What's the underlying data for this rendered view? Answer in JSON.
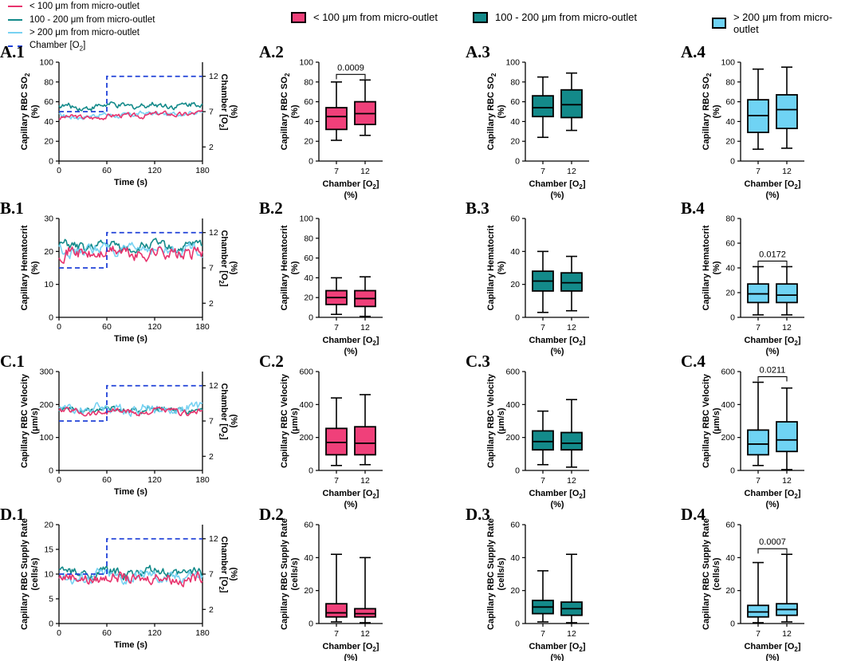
{
  "legend": {
    "lines": [
      {
        "label": "< 100 μm from micro-outlet",
        "color": "#e8336d",
        "dash": false
      },
      {
        "label": "100 - 200 μm from micro-outlet",
        "color": "#138a8a",
        "dash": false
      },
      {
        "label": "> 200 μm from micro-outlet",
        "color": "#77d2f2",
        "dash": false
      },
      {
        "label": "Chamber [O2]",
        "label_parts": {
          "pre": "Chamber [O",
          "sub": "2",
          "post": "]"
        },
        "color": "#2042d8",
        "dash": true
      }
    ],
    "boxes": [
      {
        "label": "< 100 μm from micro-outlet",
        "fill": "#f0407a"
      },
      {
        "label": "100 - 200 μm from micro-outlet",
        "fill": "#138a8a"
      },
      {
        "label": "> 200 μm from micro-outlet",
        "fill": "#6fd3f4"
      }
    ]
  },
  "colors": {
    "near": "#e8336d",
    "mid": "#138a8a",
    "far": "#77d2f2",
    "o2": "#2042d8",
    "box_near": "#f0407a",
    "box_mid": "#138a8a",
    "box_far": "#6fd3f4"
  },
  "chart_data": [
    {
      "id": "A.1",
      "type": "line",
      "ylabel": "Capillary RBC SO2",
      "ylabel_sub": "2",
      "ylabel2": "(%)",
      "ylim": [
        0,
        100
      ],
      "yticks": [
        0,
        20,
        40,
        60,
        80,
        100
      ],
      "xlabel": "Time (s)",
      "xlim": [
        0,
        180
      ],
      "xticks": [
        0,
        60,
        120,
        180
      ],
      "y2label": "Chamber [O2]",
      "y2ticks": [
        2,
        7,
        12
      ],
      "o2_step": {
        "before": 7,
        "after": 12,
        "at": 60
      },
      "series": [
        {
          "name": "< 100 μm from micro-outlet",
          "mean": 46,
          "drift": 5,
          "noise": 2
        },
        {
          "name": "100 - 200 μm from micro-outlet",
          "mean": 56,
          "drift": 3,
          "noise": 2.5
        },
        {
          "name": "> 200 μm from micro-outlet",
          "mean": 47,
          "drift": 4,
          "noise": 2
        }
      ]
    },
    {
      "id": "A.2",
      "type": "box",
      "ylabel": "Capillary RBC SO2",
      "ylabel2": "(%)",
      "ylim": [
        0,
        100
      ],
      "yticks": [
        0,
        20,
        40,
        60,
        80,
        100
      ],
      "categories": [
        "7",
        "12"
      ],
      "xlabel": "Chamber [O2]",
      "xlabel2": "(%)",
      "group": "near",
      "boxes": [
        {
          "min": 21,
          "q1": 32,
          "median": 45,
          "q3": 54,
          "max": 80
        },
        {
          "min": 26,
          "q1": 37,
          "median": 48,
          "q3": 60,
          "max": 82
        }
      ],
      "pvalue": "0.0009"
    },
    {
      "id": "A.3",
      "type": "box",
      "ylabel": "Capillary RBC SO2",
      "ylabel2": "(%)",
      "ylim": [
        0,
        100
      ],
      "yticks": [
        0,
        20,
        40,
        60,
        80,
        100
      ],
      "categories": [
        "7",
        "12"
      ],
      "xlabel": "Chamber [O2]",
      "xlabel2": "(%)",
      "group": "mid",
      "boxes": [
        {
          "min": 24,
          "q1": 45,
          "median": 54,
          "q3": 66,
          "max": 85
        },
        {
          "min": 31,
          "q1": 44,
          "median": 57,
          "q3": 72,
          "max": 89
        }
      ],
      "pvalue": null
    },
    {
      "id": "A.4",
      "type": "box",
      "ylabel": "Capillary RBC SO2",
      "ylabel2": "(%)",
      "ylim": [
        0,
        100
      ],
      "yticks": [
        0,
        20,
        40,
        60,
        80,
        100
      ],
      "categories": [
        "7",
        "12"
      ],
      "xlabel": "Chamber [O2]",
      "xlabel2": "(%)",
      "group": "far",
      "boxes": [
        {
          "min": 12,
          "q1": 29,
          "median": 46,
          "q3": 62,
          "max": 93
        },
        {
          "min": 13,
          "q1": 33,
          "median": 52,
          "q3": 67,
          "max": 95
        }
      ],
      "pvalue": null
    },
    {
      "id": "B.1",
      "type": "line",
      "ylabel": "Capillary Hematocrit",
      "ylabel2": "(%)",
      "ylim": [
        0,
        30
      ],
      "yticks": [
        0,
        10,
        20,
        30
      ],
      "xlabel": "Time (s)",
      "xlim": [
        0,
        180
      ],
      "xticks": [
        0,
        60,
        120,
        180
      ],
      "y2label": "Chamber [O2]",
      "y2ticks": [
        2,
        7,
        12
      ],
      "o2_step": {
        "before": 7,
        "after": 12,
        "at": 60
      },
      "series": [
        {
          "name": "< 100 μm from micro-outlet",
          "mean": 19.5,
          "drift": 0,
          "noise": 1.6
        },
        {
          "name": "100 - 200 μm from micro-outlet",
          "mean": 21.5,
          "drift": 0,
          "noise": 1.2
        },
        {
          "name": "> 200 μm from micro-outlet",
          "mean": 20.5,
          "drift": 0,
          "noise": 1.4
        }
      ]
    },
    {
      "id": "B.2",
      "type": "box",
      "ylabel": "Capillary Hematocrit",
      "ylabel2": "(%)",
      "ylim": [
        0,
        100
      ],
      "yticks": [
        0,
        20,
        40,
        60,
        80,
        100
      ],
      "categories": [
        "7",
        "12"
      ],
      "xlabel": "Chamber [O2]",
      "xlabel2": "(%)",
      "group": "near",
      "boxes": [
        {
          "min": 3,
          "q1": 13,
          "median": 20,
          "q3": 27,
          "max": 40
        },
        {
          "min": 1,
          "q1": 11,
          "median": 19,
          "q3": 27,
          "max": 41
        }
      ],
      "pvalue": null
    },
    {
      "id": "B.3",
      "type": "box",
      "ylabel": "Capillary Hematocrit",
      "ylabel2": "(%)",
      "ylim": [
        0,
        60
      ],
      "yticks": [
        0,
        20,
        40,
        60
      ],
      "categories": [
        "7",
        "12"
      ],
      "xlabel": "Chamber [O2]",
      "xlabel2": "(%)",
      "group": "mid",
      "boxes": [
        {
          "min": 3,
          "q1": 16,
          "median": 22,
          "q3": 28,
          "max": 40
        },
        {
          "min": 4,
          "q1": 16,
          "median": 21,
          "q3": 27,
          "max": 37
        }
      ],
      "pvalue": null
    },
    {
      "id": "B.4",
      "type": "box",
      "ylabel": "Capillary Hematocrit",
      "ylabel2": "(%)",
      "ylim": [
        0,
        80
      ],
      "yticks": [
        0,
        20,
        40,
        60,
        80
      ],
      "categories": [
        "7",
        "12"
      ],
      "xlabel": "Chamber [O2]",
      "xlabel2": "(%)",
      "group": "far",
      "boxes": [
        {
          "min": 2,
          "q1": 12,
          "median": 19,
          "q3": 27,
          "max": 41
        },
        {
          "min": 2,
          "q1": 12,
          "median": 18,
          "q3": 27,
          "max": 41
        }
      ],
      "pvalue": "0.0172"
    },
    {
      "id": "C.1",
      "type": "line",
      "ylabel": "Capillary RBC Velocity",
      "ylabel2": "(μm/s)",
      "ylim": [
        0,
        300
      ],
      "yticks": [
        0,
        100,
        200,
        300
      ],
      "xlabel": "Time (s)",
      "xlim": [
        0,
        180
      ],
      "xticks": [
        0,
        60,
        120,
        180
      ],
      "y2label": "Chamber [O2]",
      "y2ticks": [
        2,
        7,
        12
      ],
      "o2_step": {
        "before": 7,
        "after": 12,
        "at": 60
      },
      "series": [
        {
          "name": "< 100 μm from micro-outlet",
          "mean": 178,
          "drift": 0,
          "noise": 8
        },
        {
          "name": "100 - 200 μm from micro-outlet",
          "mean": 183,
          "drift": 0,
          "noise": 8
        },
        {
          "name": "> 200 μm from micro-outlet",
          "mean": 188,
          "drift": 0,
          "noise": 12
        }
      ]
    },
    {
      "id": "C.2",
      "type": "box",
      "ylabel": "Capillary RBC Velocity",
      "ylabel2": "(μm/s)",
      "ylim": [
        0,
        600
      ],
      "yticks": [
        0,
        200,
        400,
        600
      ],
      "categories": [
        "7",
        "12"
      ],
      "xlabel": "Chamber [O2]",
      "xlabel2": "(%)",
      "group": "near",
      "boxes": [
        {
          "min": 30,
          "q1": 95,
          "median": 170,
          "q3": 255,
          "max": 440
        },
        {
          "min": 35,
          "q1": 95,
          "median": 165,
          "q3": 265,
          "max": 460
        }
      ],
      "pvalue": null
    },
    {
      "id": "C.3",
      "type": "box",
      "ylabel": "Capillary RBC Velocity",
      "ylabel2": "(μm/s)",
      "ylim": [
        0,
        600
      ],
      "yticks": [
        0,
        200,
        400,
        600
      ],
      "categories": [
        "7",
        "12"
      ],
      "xlabel": "Chamber [O2]",
      "xlabel2": "(%)",
      "group": "mid",
      "boxes": [
        {
          "min": 35,
          "q1": 125,
          "median": 175,
          "q3": 240,
          "max": 360
        },
        {
          "min": 20,
          "q1": 125,
          "median": 165,
          "q3": 230,
          "max": 430
        }
      ],
      "pvalue": null
    },
    {
      "id": "C.4",
      "type": "box",
      "ylabel": "Capillary RBC Velocity",
      "ylabel2": "(μm/s)",
      "ylim": [
        0,
        600
      ],
      "yticks": [
        0,
        200,
        400,
        600
      ],
      "categories": [
        "7",
        "12"
      ],
      "xlabel": "Chamber [O2]",
      "xlabel2": "(%)",
      "group": "far",
      "boxes": [
        {
          "min": 30,
          "q1": 95,
          "median": 160,
          "q3": 245,
          "max": 535
        },
        {
          "min": 5,
          "q1": 115,
          "median": 185,
          "q3": 295,
          "max": 500
        }
      ],
      "pvalue": "0.0211"
    },
    {
      "id": "D.1",
      "type": "line",
      "ylabel": "Capillary RBC Supply Rate",
      "ylabel2": "(cells/s)",
      "ylim": [
        0,
        20
      ],
      "yticks": [
        0,
        5,
        10,
        15,
        20
      ],
      "xlabel": "Time (s)",
      "xlim": [
        0,
        180
      ],
      "xticks": [
        0,
        60,
        120,
        180
      ],
      "y2label": "Chamber [O2]",
      "y2ticks": [
        2,
        7,
        12
      ],
      "o2_step": {
        "before": 7,
        "after": 12,
        "at": 60
      },
      "series": [
        {
          "name": "< 100 μm from micro-outlet",
          "mean": 9.2,
          "drift": 0,
          "noise": 0.9
        },
        {
          "name": "100 - 200 μm from micro-outlet",
          "mean": 10.2,
          "drift": 0,
          "noise": 0.8
        },
        {
          "name": "> 200 μm from micro-outlet",
          "mean": 9.6,
          "drift": 0,
          "noise": 1.0
        }
      ]
    },
    {
      "id": "D.2",
      "type": "box",
      "ylabel": "Capillary RBC Supply Rate",
      "ylabel2": "(cells/s)",
      "ylim": [
        0,
        60
      ],
      "yticks": [
        0,
        20,
        40,
        60
      ],
      "categories": [
        "7",
        "12"
      ],
      "xlabel": "Chamber [O2]",
      "xlabel2": "(%)",
      "group": "near",
      "boxes": [
        {
          "min": 1,
          "q1": 4,
          "median": 6.5,
          "q3": 12,
          "max": 42
        },
        {
          "min": 0.5,
          "q1": 4,
          "median": 6,
          "q3": 9,
          "max": 40
        }
      ],
      "pvalue": null
    },
    {
      "id": "D.3",
      "type": "box",
      "ylabel": "Capillary RBC Supply Rate",
      "ylabel2": "(cells/s)",
      "ylim": [
        0,
        60
      ],
      "yticks": [
        0,
        20,
        40,
        60
      ],
      "categories": [
        "7",
        "12"
      ],
      "xlabel": "Chamber [O2]",
      "xlabel2": "(%)",
      "group": "mid",
      "boxes": [
        {
          "min": 1,
          "q1": 6,
          "median": 10,
          "q3": 14,
          "max": 32
        },
        {
          "min": 0.5,
          "q1": 5,
          "median": 9,
          "q3": 13,
          "max": 42
        }
      ],
      "pvalue": null
    },
    {
      "id": "D.4",
      "type": "box",
      "ylabel": "Capillary RBC Supply Rate",
      "ylabel2": "(cells/s)",
      "ylim": [
        0,
        60
      ],
      "yticks": [
        0,
        20,
        40,
        60
      ],
      "categories": [
        "7",
        "12"
      ],
      "xlabel": "Chamber [O2]",
      "xlabel2": "(%)",
      "group": "far",
      "boxes": [
        {
          "min": 0.5,
          "q1": 4,
          "median": 7,
          "q3": 11,
          "max": 37
        },
        {
          "min": 1,
          "q1": 5,
          "median": 8.5,
          "q3": 12,
          "max": 42
        }
      ],
      "pvalue": "0.0007"
    }
  ]
}
